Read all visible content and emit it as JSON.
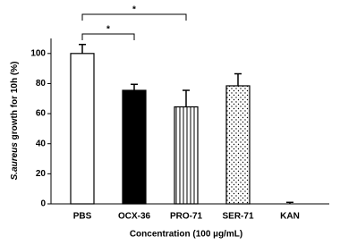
{
  "chart_data": {
    "type": "bar",
    "y_label_italic": "S.aureus",
    "y_label": " growth for 10h (%)",
    "x_label": "Concentration (100 µg/mL)",
    "categories": [
      "PBS",
      "OCX-36",
      "PRO-71",
      "SER-71",
      "KAN"
    ],
    "values": [
      100,
      75.5,
      64.5,
      78.5,
      0
    ],
    "errors": [
      6,
      4,
      11,
      8,
      1
    ],
    "patterns": [
      "none",
      "solid",
      "vertical-lines",
      "dots",
      "none"
    ],
    "color": "#000000",
    "ylim": [
      0,
      110
    ],
    "yticks": [
      0,
      20,
      40,
      60,
      80,
      100
    ],
    "grid": false,
    "significance": [
      {
        "between": [
          "PBS",
          "OCX-36"
        ],
        "label": "*"
      },
      {
        "between": [
          "PBS",
          "PRO-71"
        ],
        "label": "*"
      }
    ]
  }
}
